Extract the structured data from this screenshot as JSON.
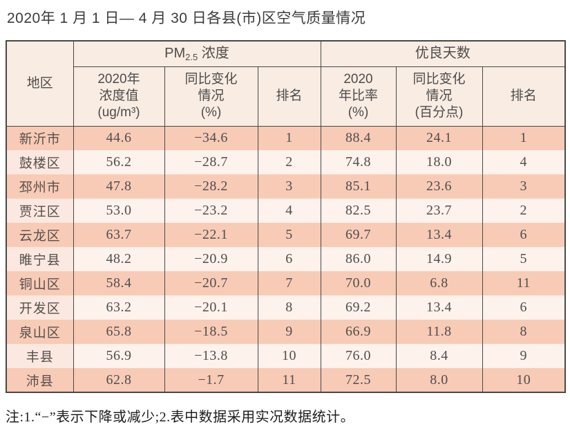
{
  "title": "2020年 1 月 1 日— 4 月 30 日各县(市)区空气质量情况",
  "table": {
    "region_header": "地区",
    "pm_section": {
      "prefix": "PM",
      "sub": "2.5",
      "suffix": " 浓度"
    },
    "good_section": "优良天数",
    "pm_cols": {
      "value": "2020年\n浓度值\n(ug/m³)",
      "change": "同比变化\n情况\n(%)",
      "rank": "排名"
    },
    "good_cols": {
      "rate": "2020\n年比率\n(%)",
      "change": "同比变化\n情况\n(百分点)",
      "rank": "排名"
    },
    "rows": [
      {
        "region": "新沂市",
        "pm_value": "44.6",
        "pm_change": "−34.6",
        "pm_rank": "1",
        "good_rate": "88.4",
        "good_change": "24.1",
        "good_rank": "1"
      },
      {
        "region": "鼓楼区",
        "pm_value": "56.2",
        "pm_change": "−28.7",
        "pm_rank": "2",
        "good_rate": "74.8",
        "good_change": "18.0",
        "good_rank": "4"
      },
      {
        "region": "邳州市",
        "pm_value": "47.8",
        "pm_change": "−28.2",
        "pm_rank": "3",
        "good_rate": "85.1",
        "good_change": "23.6",
        "good_rank": "3"
      },
      {
        "region": "贾汪区",
        "pm_value": "53.0",
        "pm_change": "−23.2",
        "pm_rank": "4",
        "good_rate": "82.5",
        "good_change": "23.7",
        "good_rank": "2"
      },
      {
        "region": "云龙区",
        "pm_value": "63.7",
        "pm_change": "−22.1",
        "pm_rank": "5",
        "good_rate": "69.7",
        "good_change": "13.4",
        "good_rank": "6"
      },
      {
        "region": "睢宁县",
        "pm_value": "48.2",
        "pm_change": "−20.9",
        "pm_rank": "6",
        "good_rate": "86.0",
        "good_change": "14.9",
        "good_rank": "5"
      },
      {
        "region": "铜山区",
        "pm_value": "58.4",
        "pm_change": "−20.7",
        "pm_rank": "7",
        "good_rate": "70.0",
        "good_change": "6.8",
        "good_rank": "11"
      },
      {
        "region": "开发区",
        "pm_value": "63.2",
        "pm_change": "−20.1",
        "pm_rank": "8",
        "good_rate": "69.2",
        "good_change": "13.4",
        "good_rank": "6"
      },
      {
        "region": "泉山区",
        "pm_value": "65.8",
        "pm_change": "−18.5",
        "pm_rank": "9",
        "good_rate": "66.9",
        "good_change": "11.8",
        "good_rank": "8"
      },
      {
        "region": "丰县",
        "pm_value": "56.9",
        "pm_change": "−13.8",
        "pm_rank": "10",
        "good_rate": "76.0",
        "good_change": "8.4",
        "good_rank": "9"
      },
      {
        "region": "沛县",
        "pm_value": "62.8",
        "pm_change": "−1.7",
        "pm_rank": "11",
        "good_rate": "72.5",
        "good_change": "8.0",
        "good_rank": "10"
      }
    ]
  },
  "footnote": "注:1.“−”表示下降或减少;2.表中数据采用实况数据统计。",
  "colors": {
    "row_odd": "#f8cbb6",
    "row_even": "#fdf2ec",
    "row_even_region": "#fbe8e0",
    "header_bg": "#f9ece2",
    "border": "#474747",
    "text": "#4c4c4c"
  }
}
